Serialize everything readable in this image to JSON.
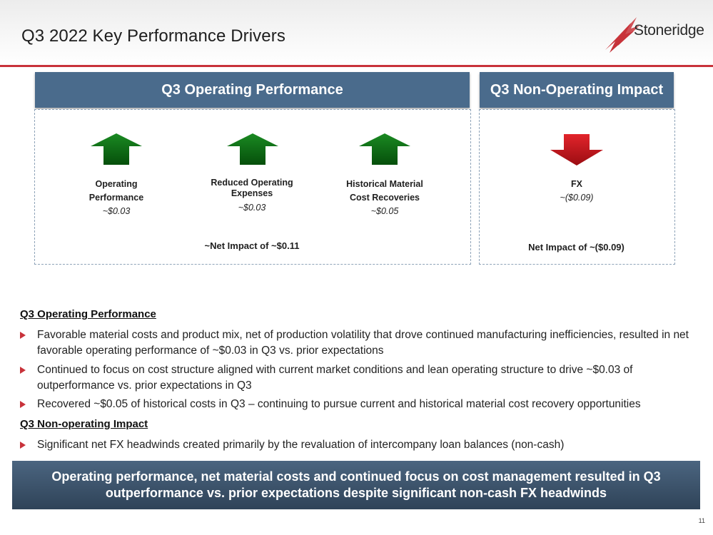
{
  "header": {
    "title": "Q3 2022 Key Performance Drivers",
    "logo_text": "Stoneridge"
  },
  "operating": {
    "heading": "Q3 Operating Performance",
    "items": [
      {
        "label_line1": "Operating",
        "label_line2": "Performance",
        "value": "~$0.03",
        "direction": "up"
      },
      {
        "label_line1": "Reduced Operating",
        "label_line2": "Expenses",
        "value": "~$0.03",
        "direction": "up"
      },
      {
        "label_line1": "Historical Material",
        "label_line2": "Cost Recoveries",
        "value": "~$0.05",
        "direction": "up"
      }
    ],
    "net": "~Net Impact of ~$0.11"
  },
  "non_operating": {
    "heading": "Q3 Non-Operating Impact",
    "item": {
      "label": "FX",
      "value": "~($0.09)",
      "direction": "down"
    },
    "net": "Net Impact of ~($0.09)"
  },
  "commentary": {
    "operating_title": "Q3 Operating Performance",
    "operating_bullets": [
      "Favorable material costs and product mix, net of production volatility that drove continued manufacturing inefficiencies, resulted in net favorable operating performance of ~$0.03 in Q3 vs. prior expectations",
      "Continued to focus on cost structure aligned with current market conditions and lean operating structure to drive ~$0.03 of outperformance vs. prior expectations in Q3",
      "Recovered ~$0.05 of historical costs in Q3 – continuing to pursue current and historical material cost recovery opportunities"
    ],
    "non_operating_title": "Q3 Non-operating Impact",
    "non_operating_bullets": [
      "Significant net FX headwinds created primarily by the revaluation of intercompany loan balances (non-cash)"
    ]
  },
  "banner": {
    "line1": "Operating performance, net material costs and continued focus on cost management resulted in Q3",
    "line2": "outperformance vs. prior expectations despite significant non-cash FX headwinds"
  },
  "page_number": "11",
  "colors": {
    "accent_red": "#c8323a",
    "panel_blue": "#4a6b8c",
    "arrow_green": "#0a6a12",
    "arrow_red": "#c4121a"
  }
}
